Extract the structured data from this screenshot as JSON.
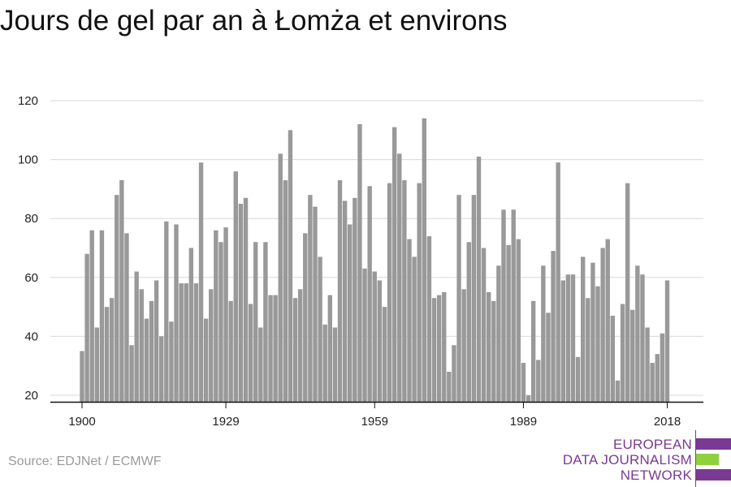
{
  "title": "Jours de gel par an à Łomża et environs",
  "source": "Source: EDJNet / ECMWF",
  "logo": {
    "lines": [
      "EUROPEAN",
      "DATA JOURNALISM",
      "NETWORK"
    ],
    "colors": {
      "purple": "#7a3a93",
      "green": "#8fd13d"
    }
  },
  "colors": {
    "bar": "#999999",
    "grid": "#d9d9d9",
    "axis": "#111111",
    "title": "#111111"
  },
  "chart_data": {
    "type": "bar",
    "title": "Jours de gel par an à Łomża et environs",
    "xlabel": "",
    "ylabel": "",
    "x_start": 1900,
    "x_end": 2021,
    "x_ticks": [
      1900,
      1929,
      1959,
      1989,
      2018
    ],
    "y_ticks": [
      20,
      40,
      60,
      80,
      100,
      120
    ],
    "ylim": [
      18,
      125
    ],
    "grid": true,
    "values": [
      35,
      68,
      76,
      43,
      76,
      50,
      53,
      88,
      93,
      75,
      37,
      62,
      56,
      46,
      52,
      59,
      40,
      79,
      45,
      78,
      58,
      58,
      70,
      58,
      99,
      46,
      56,
      76,
      72,
      77,
      52,
      96,
      85,
      87,
      51,
      72,
      43,
      72,
      54,
      54,
      102,
      93,
      110,
      53,
      56,
      75,
      88,
      84,
      67,
      44,
      54,
      43,
      93,
      86,
      78,
      87,
      112,
      63,
      91,
      62,
      59,
      50,
      92,
      111,
      102,
      93,
      73,
      67,
      92,
      114,
      74,
      53,
      54,
      55,
      28,
      37,
      88,
      56,
      72,
      88,
      101,
      70,
      55,
      52,
      64,
      83,
      71,
      83,
      73,
      31,
      20,
      52,
      32,
      64,
      48,
      69,
      99,
      59,
      61,
      61,
      33,
      67,
      53,
      65,
      57,
      70,
      73,
      47,
      25,
      51,
      92,
      49,
      64,
      61,
      43,
      31,
      34,
      41,
      59
    ]
  }
}
